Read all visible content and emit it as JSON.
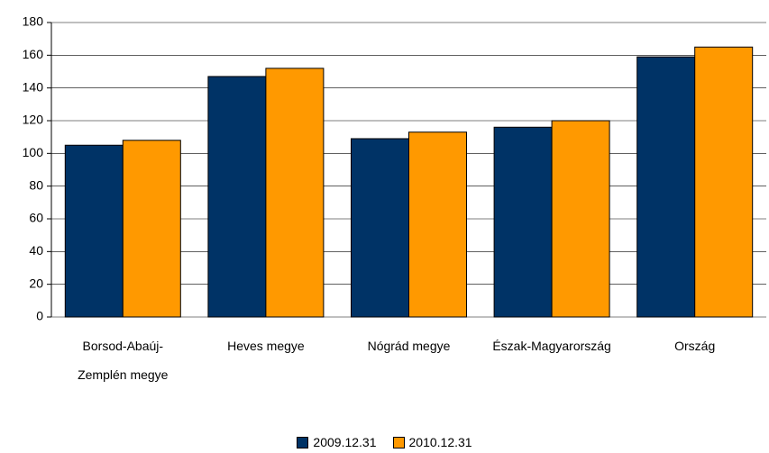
{
  "chart_data": {
    "type": "bar",
    "categories": [
      "Borsod-Abaúj-Zemplén megye",
      "Heves megye",
      "Nógrád megye",
      "Észak-Magyarország",
      "Ország"
    ],
    "series": [
      {
        "name": "2009.12.31",
        "color": "#003366",
        "values": [
          105,
          147,
          109,
          116,
          159
        ]
      },
      {
        "name": "2010.12.31",
        "color": "#ff9900",
        "values": [
          108,
          152,
          113,
          120,
          165
        ]
      }
    ],
    "ylim": [
      0,
      180
    ],
    "yticks": [
      0,
      20,
      40,
      60,
      80,
      100,
      120,
      140,
      160,
      180
    ],
    "grid": true,
    "legend": "bottom"
  }
}
